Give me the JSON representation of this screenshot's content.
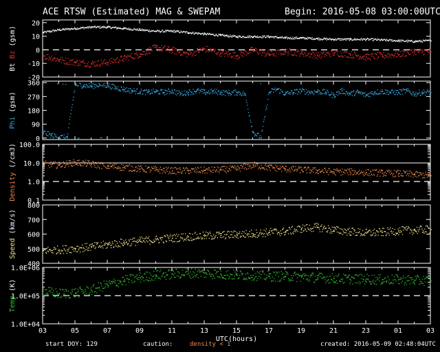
{
  "header": {
    "title": "ACE RTSW (Estimated) MAG & SWEPAM",
    "begin": "Begin: 2016-05-08 03:00:00UTC"
  },
  "footer": {
    "start_doy": "start DOY: 129",
    "caution_label": "caution:",
    "caution_value": "density < 1",
    "created": "created: 2016-05-09 02:48:04UTC"
  },
  "colors": {
    "background": "#000000",
    "bt": "#ffffff",
    "bz": "#e03030",
    "phi": "#3aa8e0",
    "density": "#f08a4b",
    "speed": "#f4e48c",
    "temp": "#34c234",
    "caution": "#f08a4b"
  },
  "chart_data": {
    "type": "scatter",
    "xlabel": "UTC(hours)",
    "x_ticks": [
      "03",
      "05",
      "07",
      "09",
      "11",
      "13",
      "15",
      "17",
      "19",
      "21",
      "23",
      "01",
      "03"
    ],
    "xlim_hours": [
      0,
      24
    ],
    "panels": [
      {
        "id": "mag",
        "ylabel_parts": [
          {
            "text": "Bt",
            "color": "#ffffff"
          },
          {
            "text": " Bz",
            "color": "#e03030"
          },
          {
            "text": " (gsm)",
            "color": "#ffffff"
          }
        ],
        "scale": "linear",
        "ylim": [
          -20,
          22
        ],
        "ticks": [
          "20",
          "10",
          "0",
          "-10",
          "-20"
        ],
        "tick_values": [
          20,
          10,
          0,
          -10,
          -20
        ],
        "dashed_lines": [
          0
        ],
        "series": [
          {
            "name": "Bt",
            "color": "#ffffff",
            "x": [
              0,
              1,
              2,
              3,
              4,
              5,
              6,
              7,
              8,
              9,
              10,
              11,
              12,
              13,
              14,
              15,
              16,
              17,
              18,
              19,
              20,
              21,
              22,
              23,
              24
            ],
            "y": [
              13,
              15,
              16,
              17,
              17,
              16,
              15,
              14,
              14,
              13,
              12,
              11,
              10,
              10,
              10,
              9,
              9,
              8.5,
              8,
              8,
              8,
              7.5,
              7,
              6.5,
              7
            ]
          },
          {
            "name": "Bz",
            "color": "#e03030",
            "x": [
              0,
              1,
              2,
              3,
              4,
              5,
              6,
              7,
              8,
              9,
              10,
              11,
              12,
              13,
              14,
              15,
              16,
              17,
              18,
              19,
              20,
              21,
              22,
              23,
              24
            ],
            "y": [
              -4,
              -7,
              -9,
              -10,
              -9,
              -6,
              -3,
              2,
              0,
              -3,
              1,
              -2,
              -4,
              0,
              -3,
              -1,
              -2,
              -4,
              -2,
              -3,
              -5,
              -4,
              -3,
              -1,
              -1
            ]
          }
        ]
      },
      {
        "id": "phi",
        "ylabel_parts": [
          {
            "text": "Phi",
            "color": "#3aa8e0"
          },
          {
            "text": " (gsm)",
            "color": "#ffffff"
          }
        ],
        "scale": "linear",
        "ylim": [
          -10,
          370
        ],
        "ticks": [
          "360",
          "270",
          "180",
          "90",
          "0"
        ],
        "tick_values": [
          360,
          270,
          180,
          90,
          0
        ],
        "dashed_lines": [],
        "series": [
          {
            "name": "Phi",
            "color": "#3aa8e0",
            "x": [
              0,
              0.5,
              1,
              1.5,
              2,
              2.5,
              3,
              3.5,
              4,
              4.5,
              5,
              5.5,
              6,
              6.5,
              7,
              7.5,
              8,
              8.5,
              9,
              9.5,
              10,
              10.5,
              11,
              11.5,
              12,
              12.5,
              13,
              13.5,
              14,
              14.5,
              15,
              15.5,
              16,
              16.5,
              17,
              17.5,
              18,
              18.5,
              19,
              19.5,
              20,
              20.5,
              21,
              21.5,
              22,
              22.5,
              23,
              23.5,
              24
            ],
            "y": [
              40,
              20,
              10,
              5,
              350,
              345,
              340,
              350,
              345,
              330,
              320,
              310,
              305,
              300,
              305,
              300,
              310,
              290,
              300,
              310,
              300,
              305,
              300,
              295,
              300,
              290,
              40,
              5,
              300,
              320,
              290,
              300,
              310,
              300,
              305,
              300,
              280,
              310,
              290,
              300,
              280,
              300,
              305,
              300,
              300,
              310,
              290,
              300,
              300
            ]
          }
        ]
      },
      {
        "id": "density",
        "ylabel_parts": [
          {
            "text": "Density",
            "color": "#f08a4b"
          },
          {
            "text": " (/cm3)",
            "color": "#ffffff"
          }
        ],
        "scale": "log",
        "ylim": [
          0.1,
          100
        ],
        "ticks": [
          "100.0",
          "10.0",
          "1.0",
          "0.1"
        ],
        "tick_values": [
          100,
          10,
          1,
          0.1
        ],
        "dashed_lines": [
          1
        ],
        "solid_lines": [
          10
        ],
        "series": [
          {
            "name": "Density",
            "color": "#f08a4b",
            "x": [
              0,
              1,
              2,
              3,
              4,
              5,
              6,
              7,
              8,
              9,
              10,
              11,
              12,
              13,
              14,
              15,
              16,
              17,
              18,
              19,
              20,
              21,
              22,
              23,
              24
            ],
            "y": [
              9,
              8,
              11,
              9,
              7,
              6,
              5,
              4.5,
              4,
              4,
              4.2,
              4.5,
              5,
              8,
              6,
              5,
              4.5,
              4,
              3.5,
              3.5,
              3.2,
              3,
              2.8,
              2.5,
              2.2
            ]
          }
        ]
      },
      {
        "id": "speed",
        "ylabel_parts": [
          {
            "text": "Speed",
            "color": "#f4e48c"
          },
          {
            "text": " (km/s)",
            "color": "#ffffff"
          }
        ],
        "scale": "linear",
        "ylim": [
          400,
          800
        ],
        "ticks": [
          "800",
          "700",
          "600",
          "500",
          "400"
        ],
        "tick_values": [
          800,
          700,
          600,
          500,
          400
        ],
        "dashed_lines": [],
        "series": [
          {
            "name": "Speed",
            "color": "#f4e48c",
            "x": [
              0,
              1,
              2,
              3,
              4,
              5,
              6,
              7,
              8,
              9,
              10,
              11,
              12,
              13,
              14,
              15,
              16,
              17,
              18,
              19,
              20,
              21,
              22,
              23,
              24
            ],
            "y": [
              490,
              495,
              505,
              515,
              530,
              545,
              555,
              565,
              575,
              585,
              590,
              595,
              600,
              605,
              615,
              620,
              640,
              650,
              630,
              620,
              610,
              615,
              625,
              630,
              635
            ]
          }
        ]
      },
      {
        "id": "temp",
        "ylabel_parts": [
          {
            "text": "Temp",
            "color": "#34c234"
          },
          {
            "text": " (K)",
            "color": "#ffffff"
          }
        ],
        "scale": "log",
        "ylim": [
          10000,
          1000000
        ],
        "ticks": [
          "1.0E+06",
          "1.0E+05",
          "1.0E+04"
        ],
        "tick_values": [
          1000000,
          100000,
          10000
        ],
        "dashed_lines": [
          100000
        ],
        "series": [
          {
            "name": "Temp",
            "color": "#34c234",
            "x": [
              0,
              1,
              2,
              3,
              4,
              5,
              6,
              7,
              8,
              9,
              10,
              11,
              12,
              13,
              14,
              15,
              16,
              17,
              18,
              19,
              20,
              21,
              22,
              23,
              24
            ],
            "y": [
              150000,
              120000,
              130000,
              160000,
              250000,
              350000,
              450000,
              550000,
              600000,
              650000,
              650000,
              600000,
              550000,
              550000,
              500000,
              500000,
              480000,
              450000,
              420000,
              400000,
              400000,
              380000,
              380000,
              360000,
              350000
            ]
          }
        ]
      }
    ]
  }
}
